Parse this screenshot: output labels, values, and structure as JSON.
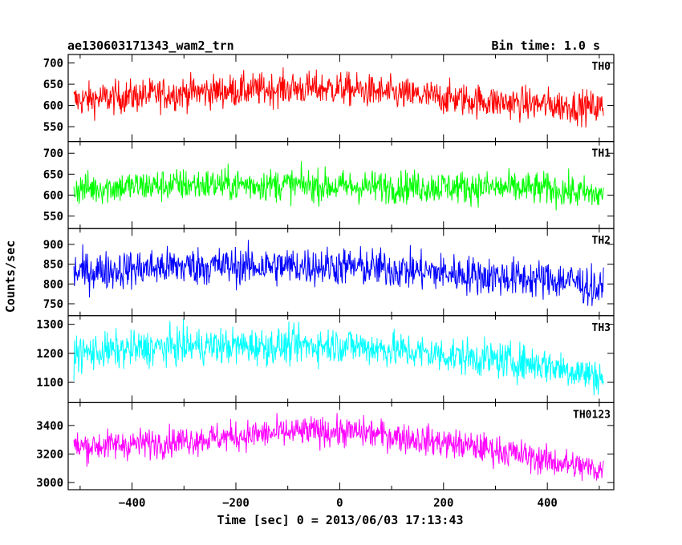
{
  "header": {
    "left_title": "ae130603171343_wam2_trn",
    "right_title": "Bin time: 1.0 s"
  },
  "ylabel": "Counts/sec",
  "xlabel": "Time [sec] 0 = 2013/06/03 17:13:43",
  "chart_data": {
    "type": "line",
    "x_range": [
      -523,
      528
    ],
    "x_ticks": [
      -400,
      -200,
      0,
      200,
      400
    ],
    "x_tick_labels": [
      "−400",
      "−200",
      "0",
      "200",
      "400"
    ],
    "panels": [
      {
        "name": "TH0",
        "color": "#ff0000",
        "ylim": [
          515,
          720
        ],
        "y_ticks": [
          550,
          600,
          650,
          700
        ],
        "trend": [
          [
            -510,
            612
          ],
          [
            -300,
            630
          ],
          [
            -100,
            640
          ],
          [
            0,
            640
          ],
          [
            100,
            628
          ],
          [
            300,
            608
          ],
          [
            500,
            595
          ]
        ],
        "noise": 28
      },
      {
        "name": "TH1",
        "color": "#00ff00",
        "ylim": [
          520,
          728
        ],
        "y_ticks": [
          550,
          600,
          650,
          700
        ],
        "trend": [
          [
            -510,
            615
          ],
          [
            -300,
            625
          ],
          [
            -100,
            625
          ],
          [
            0,
            620
          ],
          [
            200,
            620
          ],
          [
            400,
            615
          ],
          [
            500,
            600
          ]
        ],
        "noise": 28
      },
      {
        "name": "TH2",
        "color": "#0000ff",
        "ylim": [
          720,
          940
        ],
        "y_ticks": [
          750,
          800,
          850,
          900
        ],
        "trend": [
          [
            -510,
            830
          ],
          [
            -300,
            845
          ],
          [
            -100,
            845
          ],
          [
            0,
            845
          ],
          [
            100,
            838
          ],
          [
            300,
            818
          ],
          [
            450,
            808
          ],
          [
            500,
            785
          ]
        ],
        "noise": 35
      },
      {
        "name": "TH3",
        "color": "#00ffff",
        "ylim": [
          1030,
          1330
        ],
        "y_ticks": [
          1100,
          1200,
          1300
        ],
        "trend": [
          [
            -510,
            1200
          ],
          [
            -300,
            1225
          ],
          [
            -100,
            1225
          ],
          [
            0,
            1230
          ],
          [
            200,
            1195
          ],
          [
            400,
            1160
          ],
          [
            500,
            1120
          ]
        ],
        "noise": 45
      },
      {
        "name": "TH0123",
        "color": "#ff00ff",
        "ylim": [
          2950,
          3560
        ],
        "y_ticks": [
          3000,
          3200,
          3400
        ],
        "trend": [
          [
            -510,
            3250
          ],
          [
            -350,
            3280
          ],
          [
            -150,
            3340
          ],
          [
            -50,
            3360
          ],
          [
            50,
            3350
          ],
          [
            200,
            3280
          ],
          [
            300,
            3230
          ],
          [
            420,
            3140
          ],
          [
            500,
            3090
          ]
        ],
        "noise": 75
      }
    ]
  }
}
